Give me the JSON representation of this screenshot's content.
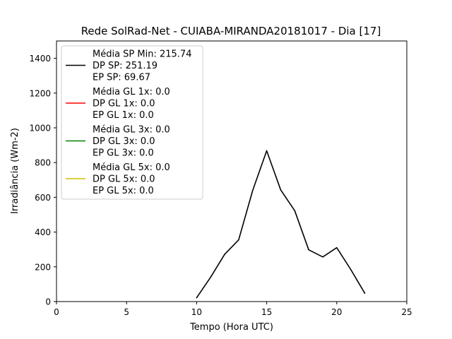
{
  "chart_data": {
    "type": "line",
    "title": "Rede SolRad-Net - CUIABA-MIRANDA20181017 - Dia [17]",
    "xlabel": "Tempo (Hora UTC)",
    "ylabel": "Irradiância (Wm-2)",
    "xlim": [
      0,
      25
    ],
    "ylim": [
      0,
      1500
    ],
    "xticks": [
      0,
      5,
      10,
      15,
      20,
      25
    ],
    "yticks": [
      0,
      200,
      400,
      600,
      800,
      1000,
      1200,
      1400
    ],
    "grid": false,
    "legend_position": "top-left",
    "series": [
      {
        "color": "#000000",
        "legend": [
          "Média SP Min: 215.74",
          "DP SP: 251.19",
          "EP SP: 69.67"
        ],
        "x": [
          10,
          11,
          12,
          13,
          14,
          15,
          16,
          17,
          18,
          19,
          20,
          21,
          22
        ],
        "y": [
          22,
          140,
          272,
          355,
          640,
          868,
          643,
          523,
          298,
          257,
          310,
          185,
          48
        ]
      },
      {
        "color": "#ff0000",
        "legend": [
          "Média GL 1x: 0.0",
          "DP GL 1x: 0.0",
          "EP GL 1x: 0.0"
        ],
        "x": [],
        "y": []
      },
      {
        "color": "#008000",
        "legend": [
          "Média GL 3x: 0.0",
          "DP GL 3x: 0.0",
          "EP GL 3x: 0.0"
        ],
        "x": [],
        "y": []
      },
      {
        "color": "#d4c000",
        "legend": [
          "Média GL 5x: 0.0",
          "DP GL 5x: 0.0",
          "EP GL 5x: 0.0"
        ],
        "x": [],
        "y": []
      }
    ]
  }
}
